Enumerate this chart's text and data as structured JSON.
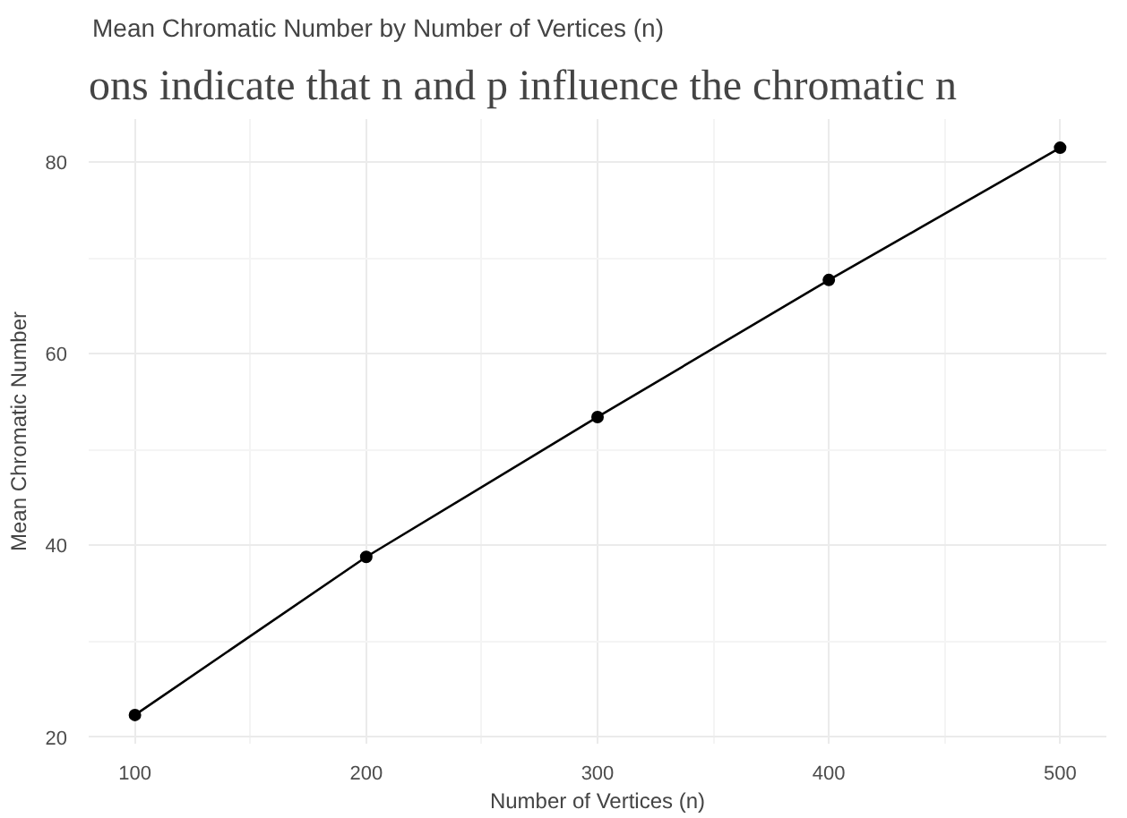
{
  "chart_data": {
    "type": "line",
    "title": "Mean Chromatic Number by Number of Vertices (n)",
    "xlabel": "Number of Vertices (n)",
    "ylabel": "Mean Chromatic Number",
    "annotations": [
      "ons indicate that n and p influence the chromatic n"
    ],
    "x": [
      100,
      200,
      300,
      400,
      500
    ],
    "series": [
      {
        "color": "#000000",
        "values": [
          22.3,
          38.8,
          53.4,
          67.7,
          81.5
        ]
      }
    ],
    "xlim": [
      80,
      520
    ],
    "ylim": [
      19.3,
      84.5
    ],
    "xticks": [
      100,
      200,
      300,
      400,
      500
    ],
    "yticks": [
      20,
      40,
      60,
      80
    ],
    "grid": true,
    "marker": "circle",
    "line_style": "solid"
  }
}
